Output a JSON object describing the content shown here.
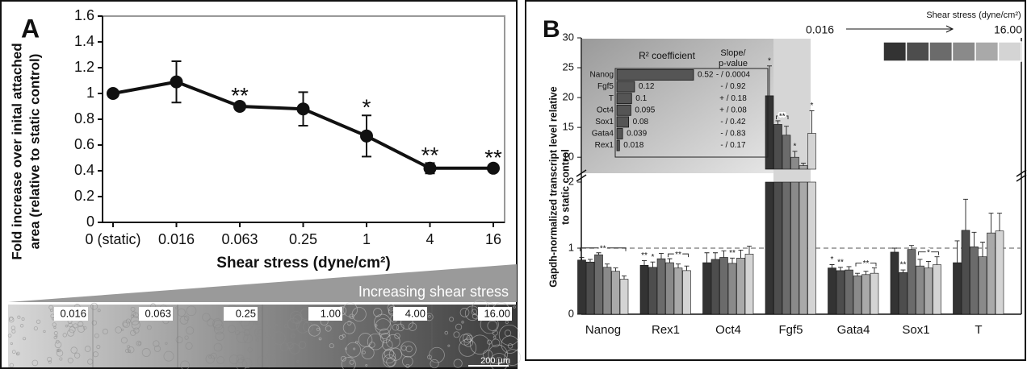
{
  "chart_data": [
    {
      "type": "line",
      "panel": "A",
      "categories": [
        "0 (static)",
        "0.016",
        "0.063",
        "0.25",
        "1",
        "4",
        "16"
      ],
      "values": [
        1.0,
        1.09,
        0.9,
        0.88,
        0.67,
        0.42,
        0.42
      ],
      "errors": [
        0,
        0.16,
        0.02,
        0.13,
        0.16,
        0.04,
        0.02
      ],
      "color": "#111111",
      "ylim": [
        0,
        1.6
      ],
      "yticks": [
        0,
        0.2,
        0.4,
        0.6,
        0.8,
        1,
        1.2,
        1.4,
        1.6
      ],
      "y_label": [
        "Fold increase over inital attached",
        "area (relative to static control)"
      ],
      "x_label": "Shear stress (dyne/cm²)",
      "annotations": [
        {
          "text": "**",
          "index": 2
        },
        {
          "text": "*",
          "index": 4
        },
        {
          "text": "**",
          "index": 5
        },
        {
          "text": "**",
          "index": 6
        }
      ]
    },
    {
      "type": "bar",
      "panel": "B",
      "categories": [
        "Nanog",
        "Rex1",
        "Oct4",
        "Fgf5",
        "Gata4",
        "Sox1",
        "T"
      ],
      "series": [
        {
          "color": "#333333",
          "values": [
            0.82,
            0.74,
            0.78,
            20.3,
            0.7,
            0.94,
            0.78
          ],
          "errors": [
            0.04,
            0.07,
            0.15,
            5.0,
            0.05,
            0.06,
            0.33
          ]
        },
        {
          "color": "#4d4d4d",
          "values": [
            0.79,
            0.71,
            0.83,
            15.5,
            0.66,
            0.63,
            1.27
          ],
          "errors": [
            0.04,
            0.08,
            0.1,
            0.6,
            0.05,
            0.04,
            0.47
          ]
        },
        {
          "color": "#6b6b6b",
          "values": [
            0.9,
            0.84,
            0.86,
            13.7,
            0.67,
            0.98,
            1.02
          ],
          "errors": [
            0.03,
            0.08,
            0.1,
            1.5,
            0.05,
            0.06,
            0.22
          ]
        },
        {
          "color": "#8a8a8a",
          "values": [
            0.71,
            0.78,
            0.77,
            10.0,
            0.58,
            0.73,
            0.87
          ],
          "errors": [
            0.05,
            0.06,
            0.08,
            1.0,
            0.04,
            0.1,
            0.22
          ]
        },
        {
          "color": "#a9a9a9",
          "values": [
            0.65,
            0.7,
            0.85,
            8.6,
            0.6,
            0.7,
            1.23
          ],
          "errors": [
            0.05,
            0.06,
            0.12,
            0.4,
            0.05,
            0.1,
            0.3
          ]
        },
        {
          "color": "#d4d4d4",
          "values": [
            0.53,
            0.66,
            0.91,
            14.0,
            0.62,
            0.75,
            1.26
          ],
          "errors": [
            0.05,
            0.07,
            0.12,
            3.8,
            0.08,
            0.12,
            0.27
          ]
        }
      ],
      "ylim": [
        0,
        30
      ],
      "axis_break": [
        2,
        8
      ],
      "yticks": [
        0,
        1,
        2,
        10,
        15,
        20,
        25,
        30
      ],
      "reference_line": 1,
      "y_label": [
        "Gapdh-normalized transcript level relative",
        "to static control"
      ],
      "legend": {
        "title": "Shear stress (dyne/cm²)",
        "from": "0.016",
        "to": "16.00"
      },
      "annotations": [
        {
          "text": "**",
          "category": 0,
          "from": 0,
          "to": 5
        },
        {
          "text": "**",
          "category": 1,
          "from": 0,
          "to": 0
        },
        {
          "text": "*",
          "category": 1,
          "from": 1,
          "to": 1
        },
        {
          "text": "**",
          "category": 1,
          "from": 3,
          "to": 5
        },
        {
          "text": "**",
          "category": 2,
          "from": 3,
          "to": 3
        },
        {
          "text": "*",
          "category": 3,
          "from": 0,
          "to": 0
        },
        {
          "text": "**",
          "category": 3,
          "from": 1,
          "to": 2
        },
        {
          "text": "*",
          "category": 3,
          "from": 3,
          "to": 3
        },
        {
          "text": "*",
          "category": 3,
          "from": 5,
          "to": 5
        },
        {
          "text": "*",
          "category": 4,
          "from": 0,
          "to": 0
        },
        {
          "text": "**",
          "category": 4,
          "from": 1,
          "to": 1
        },
        {
          "text": "**",
          "category": 4,
          "from": 3,
          "to": 5
        },
        {
          "text": "**",
          "category": 5,
          "from": 1,
          "to": 1
        },
        {
          "text": "*",
          "category": 5,
          "from": 3,
          "to": 5
        }
      ]
    },
    {
      "type": "hbar",
      "title": "R² coefficient",
      "value_header": [
        "Slope/",
        "p-value"
      ],
      "categories": [
        "Nanog",
        "Fgf5",
        "T",
        "Oct4",
        "Sox1",
        "Gata4",
        "Rex1"
      ],
      "values": [
        0.52,
        0.12,
        0.1,
        0.095,
        0.08,
        0.039,
        0.018
      ],
      "slope_labels": [
        "- / 0.0004",
        "- / 0.92",
        "+ / 0.18",
        "+ / 0.08",
        "- / 0.42",
        "- / 0.83",
        "- / 0.17"
      ],
      "color": "#555555"
    }
  ],
  "image_strip": {
    "title": "Increasing shear stress",
    "labels": [
      "0.016",
      "0.063",
      "0.25",
      "1.00",
      "4.00",
      "16.00"
    ],
    "scale_bar": "200 µm"
  }
}
